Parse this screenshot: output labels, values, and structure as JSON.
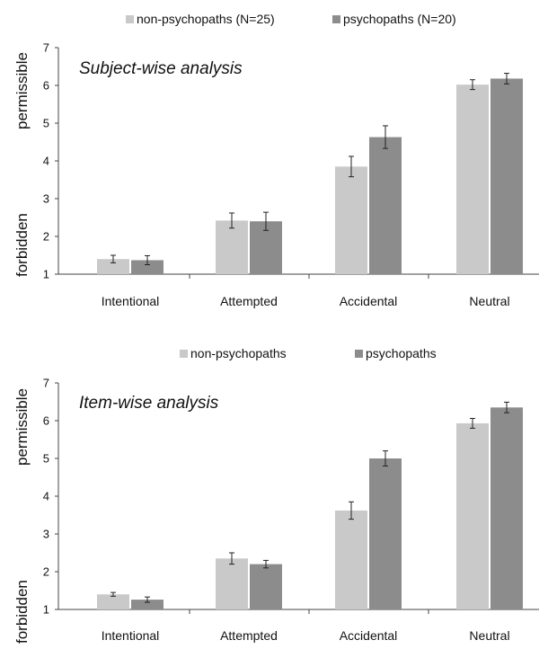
{
  "chart_data": [
    {
      "type": "bar",
      "title": "Subject-wise analysis",
      "categories": [
        "Intentional",
        "Attempted",
        "Accidental",
        "Neutral"
      ],
      "series": [
        {
          "name": "non-psychopaths (N=25)",
          "color": "#c9c9c9",
          "values": [
            1.4,
            2.42,
            3.85,
            6.02
          ],
          "errors": [
            0.1,
            0.2,
            0.27,
            0.13
          ]
        },
        {
          "name": "psychopaths (N=20)",
          "color": "#8c8c8c",
          "values": [
            1.37,
            2.4,
            4.63,
            6.18
          ],
          "errors": [
            0.12,
            0.24,
            0.3,
            0.14
          ]
        }
      ],
      "ylim": [
        1,
        7
      ],
      "yticks": [
        1,
        2,
        3,
        4,
        5,
        6,
        7
      ],
      "ylabel_top": "permissible",
      "ylabel_bottom": "forbidden",
      "legend_position": "top-center",
      "grid": false
    },
    {
      "type": "bar",
      "title": "Item-wise analysis",
      "categories": [
        "Intentional",
        "Attempted",
        "Accidental",
        "Neutral"
      ],
      "series": [
        {
          "name": "non-psychopaths",
          "color": "#c9c9c9",
          "values": [
            1.4,
            2.35,
            3.62,
            5.93
          ],
          "errors": [
            0.05,
            0.15,
            0.23,
            0.13
          ]
        },
        {
          "name": "psychopaths",
          "color": "#8c8c8c",
          "values": [
            1.26,
            2.2,
            5.0,
            6.35
          ],
          "errors": [
            0.07,
            0.1,
            0.2,
            0.14
          ]
        }
      ],
      "ylim": [
        1,
        7
      ],
      "yticks": [
        1,
        2,
        3,
        4,
        5,
        6,
        7
      ],
      "ylabel_top": "permissible",
      "ylabel_bottom": "forbidden",
      "legend_position": "top-center",
      "grid": false
    }
  ]
}
